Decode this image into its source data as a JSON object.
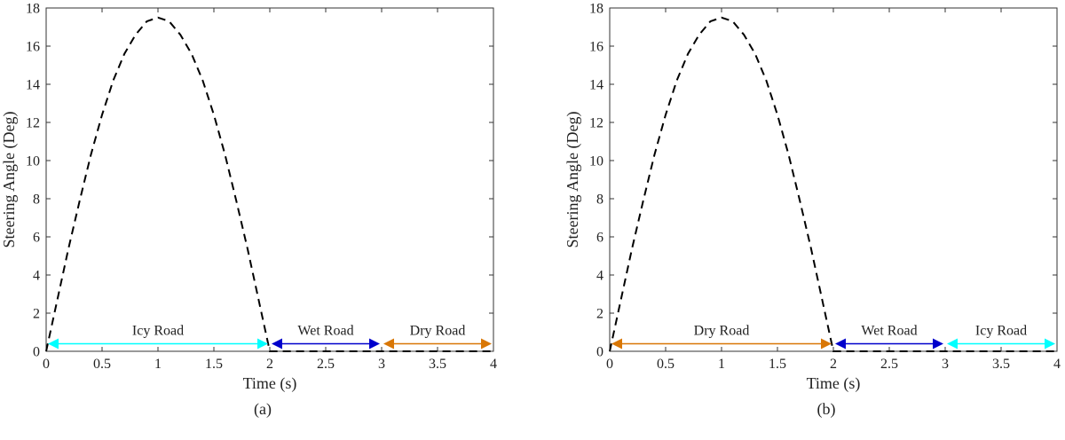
{
  "chart_data": [
    {
      "type": "line",
      "caption": "(a)",
      "xlabel": "Time (s)",
      "ylabel": "Steering Angle (Deg)",
      "xlim": [
        0,
        4
      ],
      "ylim": [
        0,
        18
      ],
      "xticks": [
        0,
        0.5,
        1,
        1.5,
        2,
        2.5,
        3,
        3.5,
        4
      ],
      "xtick_labels": [
        "0",
        "0.5",
        "1",
        "1.5",
        "2",
        "2.5",
        "3",
        "3.5",
        "4"
      ],
      "yticks": [
        0,
        2,
        4,
        6,
        8,
        10,
        12,
        14,
        16,
        18
      ],
      "ytick_labels": [
        "0",
        "2",
        "4",
        "6",
        "8",
        "10",
        "12",
        "14",
        "16",
        "18"
      ],
      "grid": false,
      "series": [
        {
          "line_style": "dashed",
          "color": "#000000",
          "x": [
            0,
            0.1,
            0.2,
            0.3,
            0.4,
            0.5,
            0.6,
            0.7,
            0.8,
            0.9,
            1.0,
            1.1,
            1.2,
            1.3,
            1.4,
            1.5,
            1.6,
            1.7,
            1.8,
            1.9,
            2.0,
            2.5,
            3.0,
            3.5,
            4.0
          ],
          "y": [
            0,
            2.7,
            5.4,
            7.9,
            10.3,
            12.4,
            14.2,
            15.6,
            16.6,
            17.3,
            17.5,
            17.3,
            16.6,
            15.6,
            14.2,
            12.4,
            10.3,
            7.9,
            5.4,
            2.7,
            0,
            0,
            0,
            0,
            0
          ]
        }
      ],
      "annotations": [
        {
          "label": "Icy Road",
          "x_start": 0,
          "x_end": 2,
          "y": 0.3,
          "color": "#00ffff"
        },
        {
          "label": "Wet Road",
          "x_start": 2,
          "x_end": 3,
          "y": 0.3,
          "color": "#0000cc"
        },
        {
          "label": "Dry Road",
          "x_start": 3,
          "x_end": 4,
          "y": 0.3,
          "color": "#d97706"
        }
      ]
    },
    {
      "type": "line",
      "caption": "(b)",
      "xlabel": "Time (s)",
      "ylabel": "Steering Angle (Deg)",
      "xlim": [
        0,
        4
      ],
      "ylim": [
        0,
        18
      ],
      "xticks": [
        0,
        0.5,
        1,
        1.5,
        2,
        2.5,
        3,
        3.5,
        4
      ],
      "xtick_labels": [
        "0",
        "0.5",
        "1",
        "1.5",
        "2",
        "2.5",
        "3",
        "3.5",
        "4"
      ],
      "yticks": [
        0,
        2,
        4,
        6,
        8,
        10,
        12,
        14,
        16,
        18
      ],
      "ytick_labels": [
        "0",
        "2",
        "4",
        "6",
        "8",
        "10",
        "12",
        "14",
        "16",
        "18"
      ],
      "grid": false,
      "series": [
        {
          "line_style": "dashed",
          "color": "#000000",
          "x": [
            0,
            0.1,
            0.2,
            0.3,
            0.4,
            0.5,
            0.6,
            0.7,
            0.8,
            0.9,
            1.0,
            1.1,
            1.2,
            1.3,
            1.4,
            1.5,
            1.6,
            1.7,
            1.8,
            1.9,
            2.0,
            2.5,
            3.0,
            3.5,
            4.0
          ],
          "y": [
            0,
            2.7,
            5.4,
            7.9,
            10.3,
            12.4,
            14.2,
            15.6,
            16.6,
            17.3,
            17.5,
            17.3,
            16.6,
            15.6,
            14.2,
            12.4,
            10.3,
            7.9,
            5.4,
            2.7,
            0,
            0,
            0,
            0,
            0
          ]
        }
      ],
      "annotations": [
        {
          "label": "Dry Road",
          "x_start": 0,
          "x_end": 2,
          "y": 0.3,
          "color": "#d97706"
        },
        {
          "label": "Wet Road",
          "x_start": 2,
          "x_end": 3,
          "y": 0.3,
          "color": "#0000cc"
        },
        {
          "label": "Icy Road",
          "x_start": 3,
          "x_end": 4,
          "y": 0.3,
          "color": "#00ffff"
        }
      ]
    }
  ]
}
